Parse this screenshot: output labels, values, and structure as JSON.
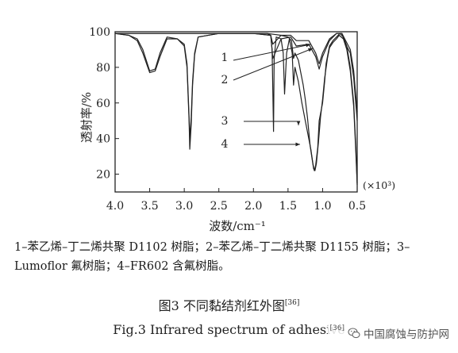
{
  "chart_data": {
    "type": "line",
    "x_unit": "×10³ cm⁻¹",
    "xlabel": "波数/cm⁻¹",
    "ylabel": "透射率/%",
    "x_axis_multiplier": "(×10³)",
    "xlim": [
      4.0,
      0.5
    ],
    "ylim": [
      10,
      100
    ],
    "x_ticks": [
      "4.0",
      "3.5",
      "3.0",
      "2.5",
      "2.0",
      "1.5",
      "1.0",
      "0.5"
    ],
    "y_ticks": [
      "100",
      "80",
      "60",
      "40",
      "20"
    ],
    "grid": false,
    "series": [
      {
        "name": "1",
        "color": "#222222",
        "points": [
          [
            4.0,
            99
          ],
          [
            3.8,
            98
          ],
          [
            3.68,
            95
          ],
          [
            3.6,
            88
          ],
          [
            3.5,
            77
          ],
          [
            3.42,
            78
          ],
          [
            3.35,
            86
          ],
          [
            3.25,
            96
          ],
          [
            3.1,
            96
          ],
          [
            3.0,
            93
          ],
          [
            2.96,
            82
          ],
          [
            2.93,
            52
          ],
          [
            2.92,
            40
          ],
          [
            2.9,
            52
          ],
          [
            2.88,
            72
          ],
          [
            2.85,
            88
          ],
          [
            2.8,
            97
          ],
          [
            2.5,
            99
          ],
          [
            2.0,
            99
          ],
          [
            1.75,
            98
          ],
          [
            1.72,
            93
          ],
          [
            1.6,
            98
          ],
          [
            1.46,
            98
          ],
          [
            1.38,
            95
          ],
          [
            1.2,
            95
          ],
          [
            1.1,
            88
          ],
          [
            1.05,
            82
          ],
          [
            1.0,
            88
          ],
          [
            0.9,
            96
          ],
          [
            0.8,
            99
          ],
          [
            0.72,
            99
          ],
          [
            0.68,
            96
          ],
          [
            0.6,
            90
          ],
          [
            0.55,
            78
          ],
          [
            0.5,
            55
          ]
        ]
      },
      {
        "name": "2",
        "color": "#222222",
        "points": [
          [
            4.0,
            99
          ],
          [
            3.8,
            98
          ],
          [
            3.68,
            96
          ],
          [
            3.6,
            90
          ],
          [
            3.5,
            78
          ],
          [
            3.42,
            79
          ],
          [
            3.35,
            88
          ],
          [
            3.25,
            97
          ],
          [
            3.1,
            96
          ],
          [
            3.0,
            92
          ],
          [
            2.96,
            80
          ],
          [
            2.93,
            50
          ],
          [
            2.92,
            34
          ],
          [
            2.9,
            48
          ],
          [
            2.88,
            70
          ],
          [
            2.85,
            87
          ],
          [
            2.8,
            97
          ],
          [
            2.5,
            99
          ],
          [
            2.0,
            99
          ],
          [
            1.75,
            98
          ],
          [
            1.72,
            85
          ],
          [
            1.6,
            96
          ],
          [
            1.46,
            97
          ],
          [
            1.38,
            92
          ],
          [
            1.2,
            93
          ],
          [
            1.1,
            86
          ],
          [
            1.05,
            79
          ],
          [
            1.0,
            86
          ],
          [
            0.9,
            95
          ],
          [
            0.8,
            99
          ],
          [
            0.72,
            99
          ],
          [
            0.68,
            94
          ],
          [
            0.6,
            88
          ],
          [
            0.55,
            74
          ],
          [
            0.5,
            50
          ]
        ]
      },
      {
        "name": "3",
        "color": "#222222",
        "points": [
          [
            4.0,
            99
          ],
          [
            3.5,
            99
          ],
          [
            3.0,
            99
          ],
          [
            2.5,
            99
          ],
          [
            2.0,
            99
          ],
          [
            1.8,
            99
          ],
          [
            1.75,
            98
          ],
          [
            1.73,
            90
          ],
          [
            1.71,
            44
          ],
          [
            1.7,
            85
          ],
          [
            1.67,
            97
          ],
          [
            1.6,
            96
          ],
          [
            1.57,
            88
          ],
          [
            1.55,
            65
          ],
          [
            1.52,
            88
          ],
          [
            1.48,
            96
          ],
          [
            1.44,
            88
          ],
          [
            1.42,
            70
          ],
          [
            1.4,
            80
          ],
          [
            1.35,
            72
          ],
          [
            1.3,
            60
          ],
          [
            1.25,
            50
          ],
          [
            1.2,
            40
          ],
          [
            1.17,
            34
          ],
          [
            1.14,
            26
          ],
          [
            1.12,
            22
          ],
          [
            1.1,
            25
          ],
          [
            1.07,
            35
          ],
          [
            1.05,
            50
          ],
          [
            1.0,
            60
          ],
          [
            0.97,
            72
          ],
          [
            0.95,
            82
          ],
          [
            0.92,
            88
          ],
          [
            0.9,
            92
          ],
          [
            0.85,
            95
          ],
          [
            0.8,
            97
          ],
          [
            0.75,
            99
          ],
          [
            0.7,
            97
          ],
          [
            0.65,
            92
          ],
          [
            0.6,
            80
          ],
          [
            0.55,
            60
          ],
          [
            0.52,
            35
          ],
          [
            0.5,
            15
          ]
        ]
      },
      {
        "name": "4",
        "color": "#222222",
        "points": [
          [
            4.0,
            99
          ],
          [
            3.5,
            99
          ],
          [
            3.0,
            99
          ],
          [
            2.5,
            99
          ],
          [
            2.0,
            99
          ],
          [
            1.8,
            99
          ],
          [
            1.6,
            98
          ],
          [
            1.5,
            97
          ],
          [
            1.45,
            95
          ],
          [
            1.42,
            85
          ],
          [
            1.4,
            88
          ],
          [
            1.35,
            84
          ],
          [
            1.32,
            78
          ],
          [
            1.28,
            70
          ],
          [
            1.25,
            62
          ],
          [
            1.22,
            52
          ],
          [
            1.2,
            44
          ],
          [
            1.18,
            36
          ],
          [
            1.15,
            28
          ],
          [
            1.13,
            23
          ],
          [
            1.11,
            22
          ],
          [
            1.09,
            26
          ],
          [
            1.06,
            38
          ],
          [
            1.03,
            52
          ],
          [
            1.0,
            62
          ],
          [
            0.97,
            74
          ],
          [
            0.93,
            85
          ],
          [
            0.9,
            91
          ],
          [
            0.85,
            94
          ],
          [
            0.8,
            96
          ],
          [
            0.76,
            98
          ],
          [
            0.7,
            96
          ],
          [
            0.65,
            90
          ],
          [
            0.6,
            78
          ],
          [
            0.55,
            58
          ],
          [
            0.52,
            32
          ],
          [
            0.5,
            14
          ]
        ]
      }
    ],
    "annotations": [
      "1",
      "2",
      "3",
      "4"
    ]
  },
  "legend_text": "1–苯乙烯–丁二烯共聚 D1102 树脂；2–苯乙烯–丁二烯共聚 D1155 树脂；3–Lumoflor 氟树脂；4–FR602 含氟树脂。",
  "caption_cn": "图3  不同黏结剂红外图",
  "caption_cn_ref": "[36]",
  "caption_en": "Fig.3  Infrared spectrum of adhesive",
  "watermark": {
    "text": "中国腐蚀与防护网",
    "ref": "[36]",
    "icon": "wechat-icon"
  }
}
